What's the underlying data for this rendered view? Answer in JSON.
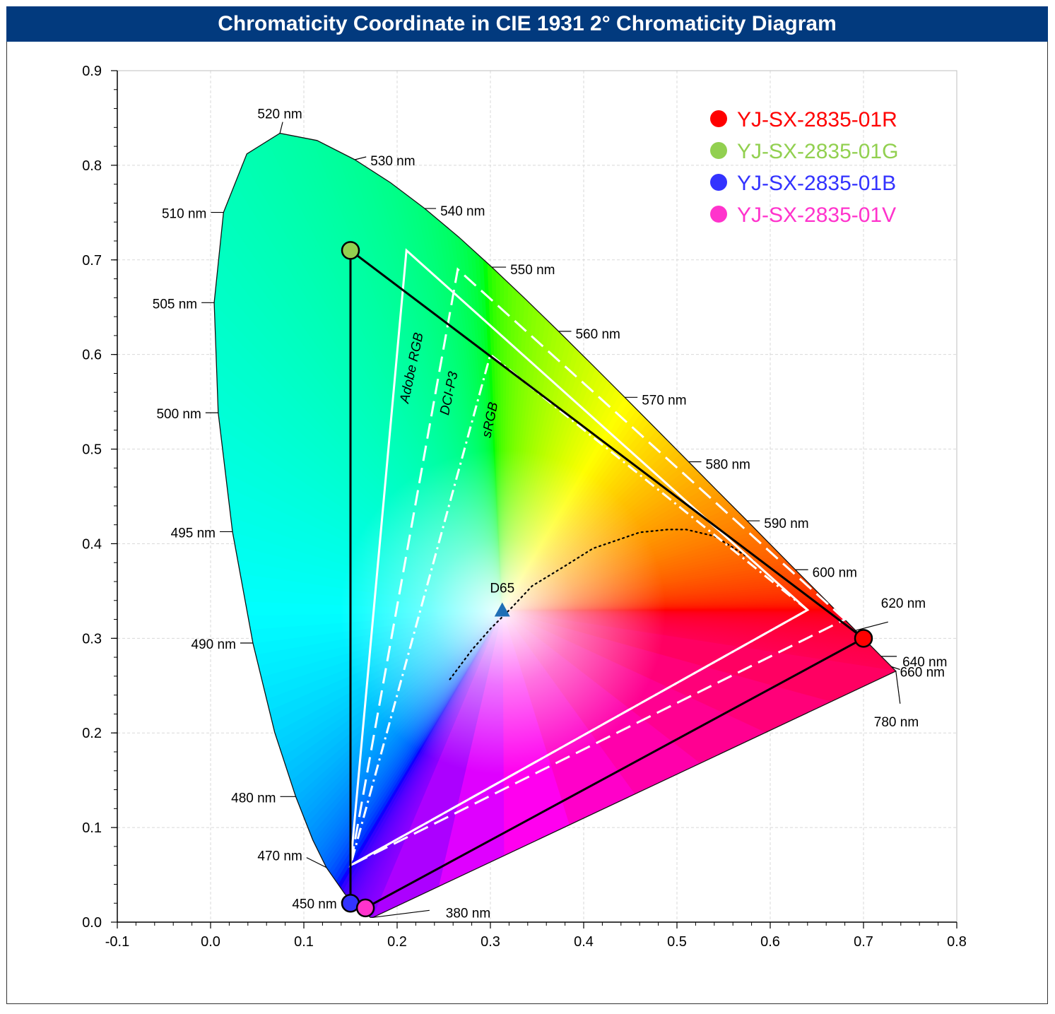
{
  "title": "Chromaticity Coordinate in CIE 1931 2° Chromaticity Diagram",
  "chart_data": {
    "type": "scatter",
    "title": "Chromaticity Coordinate in CIE 1931 2° Chromaticity Diagram",
    "xlabel": "",
    "ylabel": "",
    "xlim": [
      -0.1,
      0.8
    ],
    "ylim": [
      0.0,
      0.9
    ],
    "x_ticks": [
      "-0.1",
      "0.0",
      "0.1",
      "0.2",
      "0.3",
      "0.4",
      "0.5",
      "0.6",
      "0.7",
      "0.8"
    ],
    "y_ticks": [
      "0.0",
      "0.1",
      "0.2",
      "0.3",
      "0.4",
      "0.5",
      "0.6",
      "0.7",
      "0.8",
      "0.9"
    ],
    "grid": true,
    "legend_position": "top-right",
    "series": [
      {
        "name": "YJ-SX-2835-01R",
        "color": "#ff0000",
        "x": 0.7,
        "y": 0.3
      },
      {
        "name": "YJ-SX-2835-01G",
        "color": "#92d050",
        "x": 0.15,
        "y": 0.71
      },
      {
        "name": "YJ-SX-2835-01B",
        "color": "#3333ff",
        "x": 0.15,
        "y": 0.02
      },
      {
        "name": "YJ-SX-2835-01V",
        "color": "#ff33cc",
        "x": 0.166,
        "y": 0.015
      }
    ],
    "gamuts": [
      {
        "name": "Adobe RGB",
        "style": "solid",
        "points": [
          [
            0.64,
            0.33
          ],
          [
            0.21,
            0.71
          ],
          [
            0.15,
            0.06
          ]
        ]
      },
      {
        "name": "DCI-P3",
        "style": "dashed",
        "points": [
          [
            0.68,
            0.32
          ],
          [
            0.265,
            0.69
          ],
          [
            0.15,
            0.06
          ]
        ]
      },
      {
        "name": "sRGB",
        "style": "dashdot",
        "points": [
          [
            0.64,
            0.33
          ],
          [
            0.3,
            0.6
          ],
          [
            0.15,
            0.06
          ]
        ]
      }
    ],
    "white_point": {
      "name": "D65",
      "x": 0.3127,
      "y": 0.329
    },
    "spectral_locus_labels": [
      {
        "text": "380 nm",
        "nm": 380,
        "x": 0.1741,
        "y": 0.005
      },
      {
        "text": "450 nm",
        "nm": 450,
        "x": 0.1566,
        "y": 0.0177
      },
      {
        "text": "470 nm",
        "nm": 470,
        "x": 0.1241,
        "y": 0.0578
      },
      {
        "text": "480 nm",
        "nm": 480,
        "x": 0.0913,
        "y": 0.1327
      },
      {
        "text": "490 nm",
        "nm": 490,
        "x": 0.0454,
        "y": 0.295
      },
      {
        "text": "495 nm",
        "nm": 495,
        "x": 0.0235,
        "y": 0.4127
      },
      {
        "text": "500 nm",
        "nm": 500,
        "x": 0.0082,
        "y": 0.5384
      },
      {
        "text": "505 nm",
        "nm": 505,
        "x": 0.0039,
        "y": 0.6548
      },
      {
        "text": "510 nm",
        "nm": 510,
        "x": 0.0139,
        "y": 0.7502
      },
      {
        "text": "520 nm",
        "nm": 520,
        "x": 0.0743,
        "y": 0.8338
      },
      {
        "text": "530 nm",
        "nm": 530,
        "x": 0.1547,
        "y": 0.8059
      },
      {
        "text": "540 nm",
        "nm": 540,
        "x": 0.2296,
        "y": 0.7543
      },
      {
        "text": "550 nm",
        "nm": 550,
        "x": 0.3016,
        "y": 0.6923
      },
      {
        "text": "560 nm",
        "nm": 560,
        "x": 0.3731,
        "y": 0.6245
      },
      {
        "text": "570 nm",
        "nm": 570,
        "x": 0.4441,
        "y": 0.5547
      },
      {
        "text": "580 nm",
        "nm": 580,
        "x": 0.5125,
        "y": 0.4866
      },
      {
        "text": "590 nm",
        "nm": 590,
        "x": 0.5752,
        "y": 0.4242
      },
      {
        "text": "600 nm",
        "nm": 600,
        "x": 0.627,
        "y": 0.3725
      },
      {
        "text": "620 nm",
        "nm": 620,
        "x": 0.6915,
        "y": 0.3083
      },
      {
        "text": "640 nm",
        "nm": 640,
        "x": 0.719,
        "y": 0.2809
      },
      {
        "text": "660 nm",
        "nm": 660,
        "x": 0.73,
        "y": 0.27
      },
      {
        "text": "780 nm",
        "nm": 780,
        "x": 0.7347,
        "y": 0.2653
      }
    ]
  },
  "colors": {
    "title_bar": "#023a7e",
    "title_text": "#ffffff",
    "white_point_marker": "#1f6fb5"
  }
}
